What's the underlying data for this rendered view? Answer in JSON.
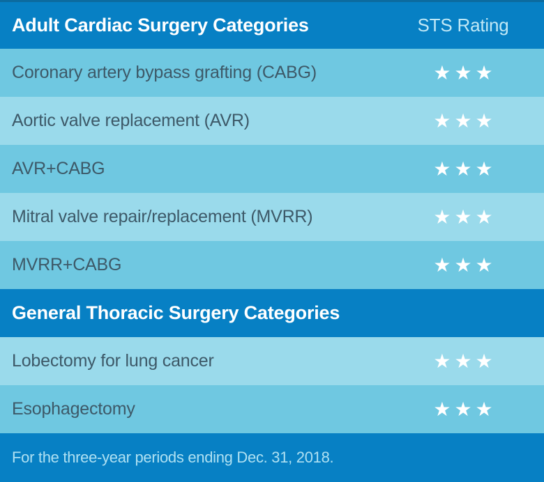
{
  "chart_data": {
    "type": "table",
    "rating_column_label": "STS Rating",
    "rating_style": "stars",
    "sections": [
      {
        "title": "Adult Cardiac Surgery Categories",
        "rows": [
          {
            "label": "Coronary artery bypass grafting (CABG)",
            "rating": 3
          },
          {
            "label": "Aortic valve replacement (AVR)",
            "rating": 3
          },
          {
            "label": "AVR+CABG",
            "rating": 3
          },
          {
            "label": "Mitral valve repair/replacement (MVRR)",
            "rating": 3
          },
          {
            "label": "MVRR+CABG",
            "rating": 3
          }
        ]
      },
      {
        "title": "General Thoracic Surgery Categories",
        "rows": [
          {
            "label": "Lobectomy for lung cancer",
            "rating": 3
          },
          {
            "label": "Esophagectomy",
            "rating": 3
          }
        ]
      }
    ],
    "footnote": "For the three-year periods ending Dec. 31, 2018."
  },
  "icons": {
    "star": "★"
  },
  "colors": {
    "header_bg": "#0780c4",
    "row_dark": "#6fc8e1",
    "row_light": "#9adaeb",
    "label_text": "#3d5968",
    "header_title_text": "#ffffff",
    "rating_header_text": "#c0e8f6",
    "footer_text": "#aee0f2",
    "star": "#ffffff",
    "edge_top": "#0c6b9f"
  }
}
